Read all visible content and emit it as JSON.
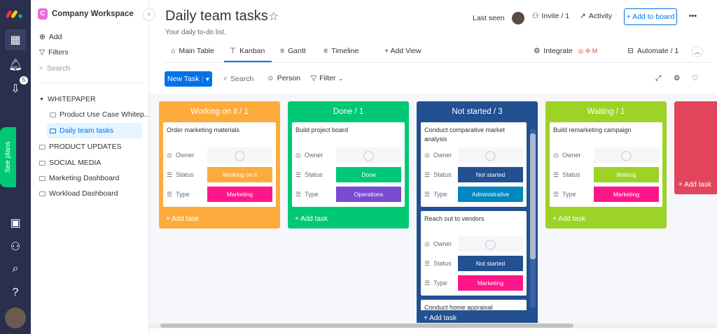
{
  "rail": {
    "inbox_count": "5",
    "see_plans": "See plans"
  },
  "sidebar": {
    "workspace": "Company Workspace",
    "workspace_initial": "C",
    "add": "Add",
    "filters": "Filters",
    "search": "Search",
    "items": [
      {
        "label": "WHITEPAPER"
      },
      {
        "label": "Product Use Case Whitep..."
      },
      {
        "label": "Daily team tasks"
      },
      {
        "label": "PRODUCT UPDATES"
      },
      {
        "label": "SOCIAL MEDIA"
      },
      {
        "label": "Marketing Dashboard"
      },
      {
        "label": "Workload Dashboard"
      }
    ]
  },
  "header": {
    "title": "Daily team tasks",
    "description": "Your daily to-do list.",
    "last_seen": "Last seen",
    "invite": "Invite / 1",
    "activity": "Activity",
    "add_to_board": "+ Add to board",
    "more": "•••"
  },
  "tabs": [
    {
      "label": "Main Table"
    },
    {
      "label": "Kanban"
    },
    {
      "label": "Gantt"
    },
    {
      "label": "Timeline"
    },
    {
      "label": "+ Add View"
    }
  ],
  "tabs_right": {
    "integrate": "Integrate",
    "automate": "Automate / 1"
  },
  "toolbar": {
    "new_task": "New Task",
    "search": "Search",
    "person": "Person",
    "filter": "Filter"
  },
  "labels": {
    "owner": "Owner",
    "status": "Status",
    "type": "Type",
    "add_task": "+ Add task"
  },
  "colors": {
    "working": "#fdab3d",
    "done": "#00c875",
    "not_started": "#225091",
    "waiting": "#9cd326",
    "stuck": "#e2445c",
    "marketing": "#ff158a",
    "operations": "#784bd1",
    "administrative": "#0086c0"
  },
  "columns": [
    {
      "title": "Working on it / 1",
      "color": "#fdab3d",
      "cards": [
        {
          "name": "Order marketing materials",
          "status": "Working on it",
          "status_color": "#fdab3d",
          "type": "Marketing",
          "type_color": "#ff158a"
        }
      ]
    },
    {
      "title": "Done / 1",
      "color": "#00c875",
      "cards": [
        {
          "name": "Build project board",
          "status": "Done",
          "status_color": "#00c875",
          "type": "Operations",
          "type_color": "#784bd1"
        }
      ]
    },
    {
      "title": "Not started / 3",
      "color": "#225091",
      "cards": [
        {
          "name": "Conduct comparative market analysis",
          "status": "Not started",
          "status_color": "#225091",
          "type": "Administrative",
          "type_color": "#0086c0"
        },
        {
          "name": "Reach out to vendors",
          "status": "Not started",
          "status_color": "#225091",
          "type": "Marketing",
          "type_color": "#ff158a"
        },
        {
          "name": "Conduct home appraisal"
        }
      ]
    },
    {
      "title": "Waiting / 1",
      "color": "#9cd326",
      "cards": [
        {
          "name": "Build remarketing campaign",
          "status": "Waiting",
          "status_color": "#9cd326",
          "type": "Marketing",
          "type_color": "#ff158a"
        }
      ]
    },
    {
      "title": "",
      "color": "#e2445c",
      "cards": []
    }
  ]
}
